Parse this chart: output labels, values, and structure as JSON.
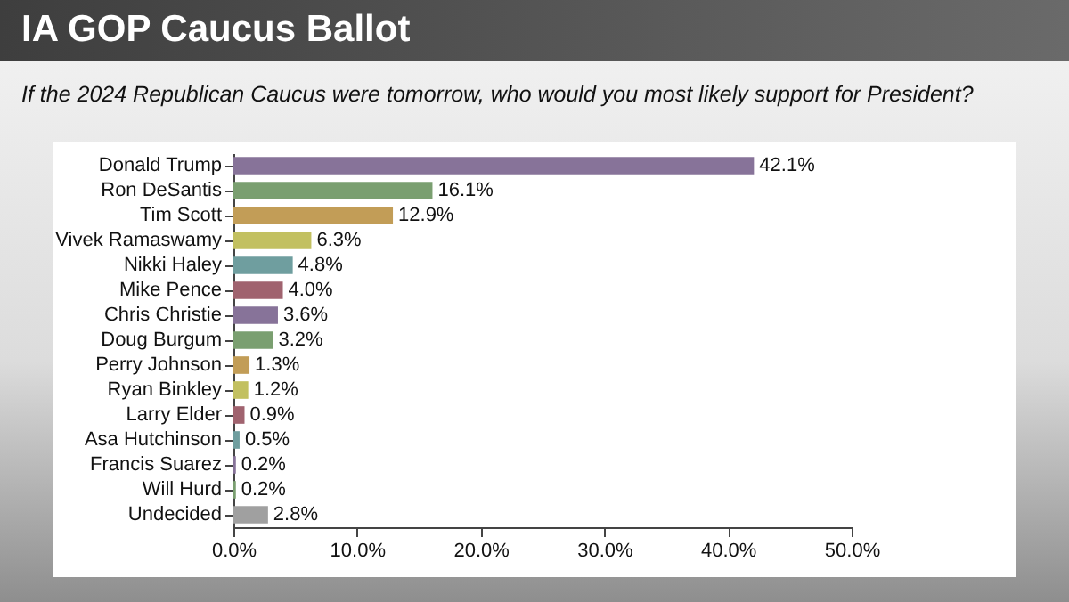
{
  "chart_data": {
    "type": "bar",
    "orientation": "horizontal",
    "title": "IA GOP Caucus Ballot",
    "subtitle": "If the 2024 Republican Caucus were tomorrow, who would you most likely support for President?",
    "categories": [
      "Donald Trump",
      "Ron DeSantis",
      "Tim Scott",
      "Vivek Ramaswamy",
      "Nikki Haley",
      "Mike Pence",
      "Chris Christie",
      "Doug Burgum",
      "Perry Johnson",
      "Ryan Binkley",
      "Larry Elder",
      "Asa Hutchinson",
      "Francis Suarez",
      "Will Hurd",
      "Undecided"
    ],
    "values": [
      42.1,
      16.1,
      12.9,
      6.3,
      4.8,
      4.0,
      3.6,
      3.2,
      1.3,
      1.2,
      0.9,
      0.5,
      0.2,
      0.2,
      2.8
    ],
    "value_labels": [
      "42.1%",
      "16.1%",
      "12.9%",
      "6.3%",
      "4.8%",
      "4.0%",
      "3.6%",
      "3.2%",
      "1.3%",
      "1.2%",
      "0.9%",
      "0.5%",
      "0.2%",
      "0.2%",
      "2.8%"
    ],
    "colors": [
      "#877399",
      "#7a9f70",
      "#c29d57",
      "#c2c060",
      "#6f9e9f",
      "#a0636f",
      "#877399",
      "#7a9f70",
      "#c29d57",
      "#c2c060",
      "#a0636f",
      "#6f9e9f",
      "#877399",
      "#7a9f70",
      "#a0a0a0"
    ],
    "xlim": [
      0,
      50
    ],
    "xticks": [
      {
        "value": 0,
        "label": "0.0%"
      },
      {
        "value": 10,
        "label": "10.0%"
      },
      {
        "value": 20,
        "label": "20.0%"
      },
      {
        "value": 30,
        "label": "30.0%"
      },
      {
        "value": 40,
        "label": "40.0%"
      },
      {
        "value": 50,
        "label": "50.0%"
      }
    ],
    "grid": false
  }
}
